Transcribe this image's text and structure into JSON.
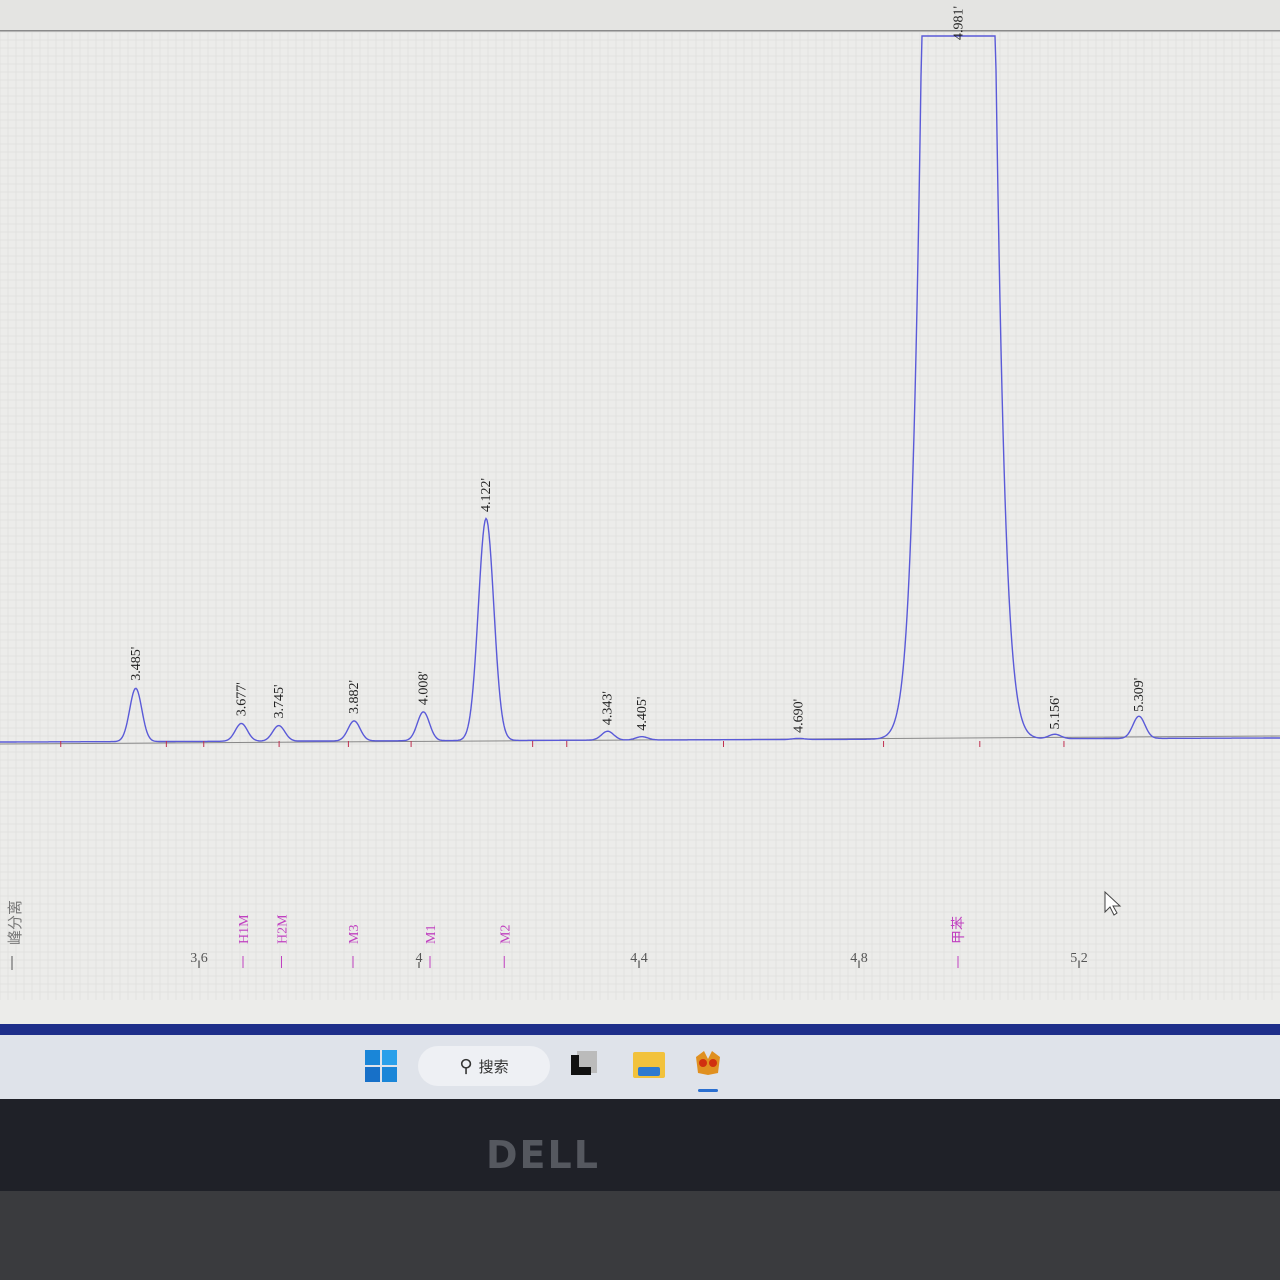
{
  "chart_data": {
    "type": "line",
    "title": "",
    "xlabel": "",
    "ylabel": "",
    "xlim": [
      3.32,
      5.52
    ],
    "x_ticks": [
      "3.6",
      "4",
      "4.4",
      "4.8",
      "5.2"
    ],
    "x_tick_values": [
      3.6,
      4.0,
      4.4,
      4.8,
      5.2
    ],
    "y_units": "relative height (4.122' peak = 100)",
    "grid": true,
    "line_color": "#5a5ad8",
    "peaks": [
      {
        "label": "3.485'",
        "rt": 3.485,
        "height": 24
      },
      {
        "label": "3.677'",
        "rt": 3.677,
        "height": 8
      },
      {
        "label": "3.745'",
        "rt": 3.745,
        "height": 7
      },
      {
        "label": "3.882'",
        "rt": 3.882,
        "height": 9
      },
      {
        "label": "4.008'",
        "rt": 4.008,
        "height": 13
      },
      {
        "label": "4.122'",
        "rt": 4.122,
        "height": 100
      },
      {
        "label": "4.343'",
        "rt": 4.343,
        "height": 4
      },
      {
        "label": "4.405'",
        "rt": 4.405,
        "height": 1.5
      },
      {
        "label": "4.690'",
        "rt": 4.69,
        "height": 0.5
      },
      {
        "label": "4.981'",
        "rt": 4.981,
        "height": 2000,
        "off_scale": true
      },
      {
        "label": "5.156'",
        "rt": 5.156,
        "height": 2
      },
      {
        "label": "5.309'",
        "rt": 5.309,
        "height": 10
      }
    ],
    "reference_markers": [
      {
        "label": "H1M",
        "rt": 3.68
      },
      {
        "label": "H2M",
        "rt": 3.75
      },
      {
        "label": "M3",
        "rt": 3.88
      },
      {
        "label": "M1",
        "rt": 4.02
      },
      {
        "label": "M2",
        "rt": 4.155
      },
      {
        "label": "甲苯",
        "rt": 4.98
      }
    ],
    "marker_color": "#c040c0",
    "left_label": "峰分离"
  },
  "taskbar": {
    "search_label": "搜索",
    "items": [
      "start-icon",
      "search-icon",
      "task-view-icon",
      "file-explorer-icon",
      "app-icon"
    ]
  },
  "monitor_brand": "DELL"
}
